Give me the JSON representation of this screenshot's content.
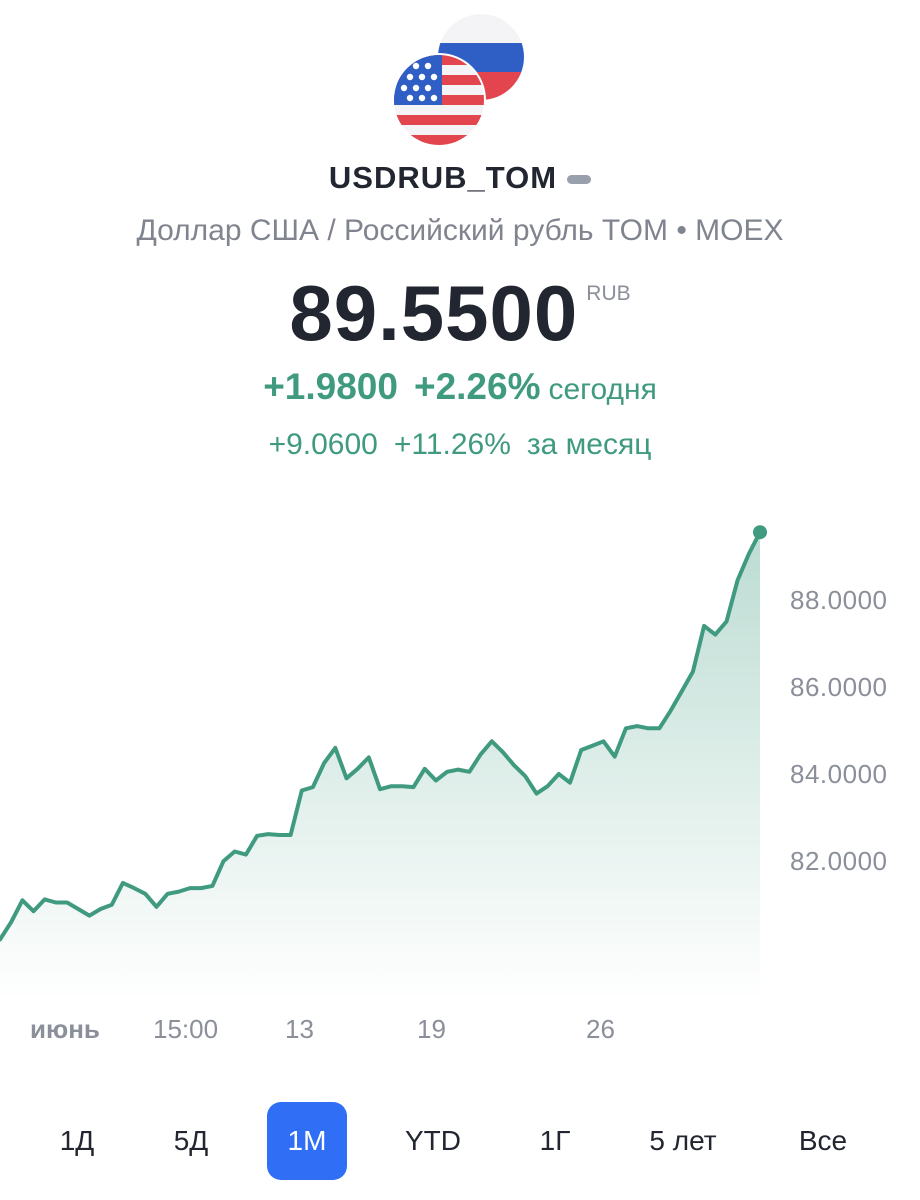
{
  "instrument": {
    "ticker": "USDRUB_TOM",
    "subtitle": "Доллар США / Российский рубль TOM • MOEX",
    "price": "89.5500",
    "currency": "RUB",
    "flags": [
      "us-flag-icon",
      "ru-flag-icon"
    ]
  },
  "change": {
    "day_abs": "+1.9800",
    "day_pct": "+2.26%",
    "day_label": "сегодня",
    "month_abs": "+9.0600",
    "month_pct": "+11.26%",
    "month_label": "за месяц"
  },
  "colors": {
    "accent": "#3f9a7f",
    "active_tab": "#2f6ef5",
    "text": "#222630",
    "muted": "#8a8f99"
  },
  "chart_data": {
    "type": "area",
    "title": "",
    "xlabel": "",
    "ylabel": "",
    "ylim": [
      79.5,
      89.9
    ],
    "y_ticks": [
      "88.0000",
      "86.0000",
      "84.0000",
      "82.0000"
    ],
    "x_ticks": [
      "июнь",
      "15:00",
      "13",
      "19",
      "26"
    ],
    "grid": false,
    "series": [
      {
        "values": [
          80.2,
          80.6,
          81.1,
          80.85,
          81.12,
          81.05,
          81.05,
          80.9,
          80.75,
          80.9,
          81.0,
          81.5,
          81.38,
          81.25,
          80.95,
          81.25,
          81.3,
          81.38,
          81.38,
          81.43,
          82.0,
          82.22,
          82.15,
          82.58,
          82.62,
          82.6,
          82.6,
          83.62,
          83.7,
          84.25,
          84.6,
          83.9,
          84.12,
          84.38,
          83.65,
          83.72,
          83.72,
          83.7,
          84.12,
          83.85,
          84.05,
          84.1,
          84.05,
          84.45,
          84.75,
          84.5,
          84.2,
          83.95,
          83.55,
          83.72,
          84.0,
          83.8,
          84.55,
          84.65,
          84.75,
          84.4,
          85.05,
          85.1,
          85.05,
          85.05,
          85.45,
          85.9,
          86.35,
          87.4,
          87.2,
          87.5,
          88.45,
          89.05,
          89.55
        ]
      }
    ]
  },
  "periods": [
    {
      "label": "1Д",
      "active": false
    },
    {
      "label": "5Д",
      "active": false
    },
    {
      "label": "1М",
      "active": true
    },
    {
      "label": "YTD",
      "active": false
    },
    {
      "label": "1Г",
      "active": false
    },
    {
      "label": "5 лет",
      "active": false
    },
    {
      "label": "Все",
      "active": false
    }
  ]
}
